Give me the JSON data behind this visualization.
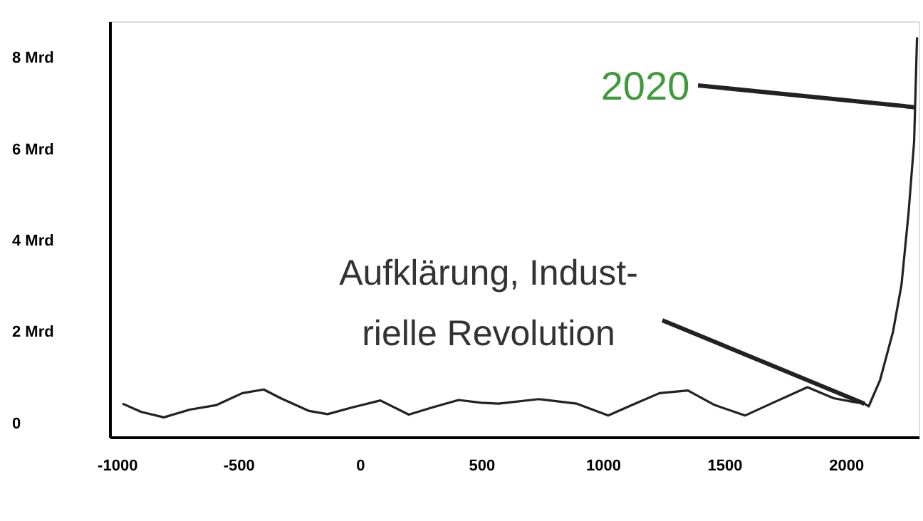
{
  "chart_data": {
    "type": "line",
    "x": [
      -977,
      -900,
      -807,
      -700,
      -590,
      -484,
      -396,
      -326,
      -209,
      -133,
      -30,
      84,
      201,
      300,
      406,
      500,
      571,
      735,
      893,
      1022,
      1120,
      1233,
      1350,
      1460,
      1585,
      1700,
      1842,
      1950,
      2018,
      2077,
      2094,
      2141,
      2194,
      2229,
      2258,
      2281,
      2293
    ],
    "series": [
      {
        "color": "#222222",
        "values": [
          0.43,
          0.25,
          0.13,
          0.3,
          0.4,
          0.66,
          0.74,
          0.55,
          0.27,
          0.2,
          0.35,
          0.5,
          0.19,
          0.35,
          0.51,
          0.45,
          0.43,
          0.53,
          0.43,
          0.17,
          0.4,
          0.66,
          0.72,
          0.4,
          0.17,
          0.45,
          0.79,
          0.55,
          0.48,
          0.43,
          0.37,
          0.95,
          2.0,
          3.03,
          4.6,
          6.16,
          8.45
        ]
      }
    ],
    "xlim": [
      -1030,
      2300
    ],
    "xticks": [
      -1000,
      -500,
      0,
      500,
      1000,
      1500,
      2000
    ],
    "ylim": [
      -0.3,
      8.8
    ],
    "yticks": [
      0,
      {
        "value": 2,
        "label": "2 Mrd"
      },
      {
        "value": 4,
        "label": "4 Mrd"
      },
      {
        "value": 6,
        "label": "6 Mrd"
      },
      {
        "value": 8,
        "label": "8 Mrd"
      }
    ],
    "grid": false,
    "marker": "none",
    "line_style": "solid",
    "annotations": [
      {
        "text": "2020",
        "x": 2285,
        "y": 6.92
      },
      {
        "text": "Aufklärung, Indust-\nrielle Revolution",
        "x": 2077,
        "y": 0.43
      }
    ]
  }
}
